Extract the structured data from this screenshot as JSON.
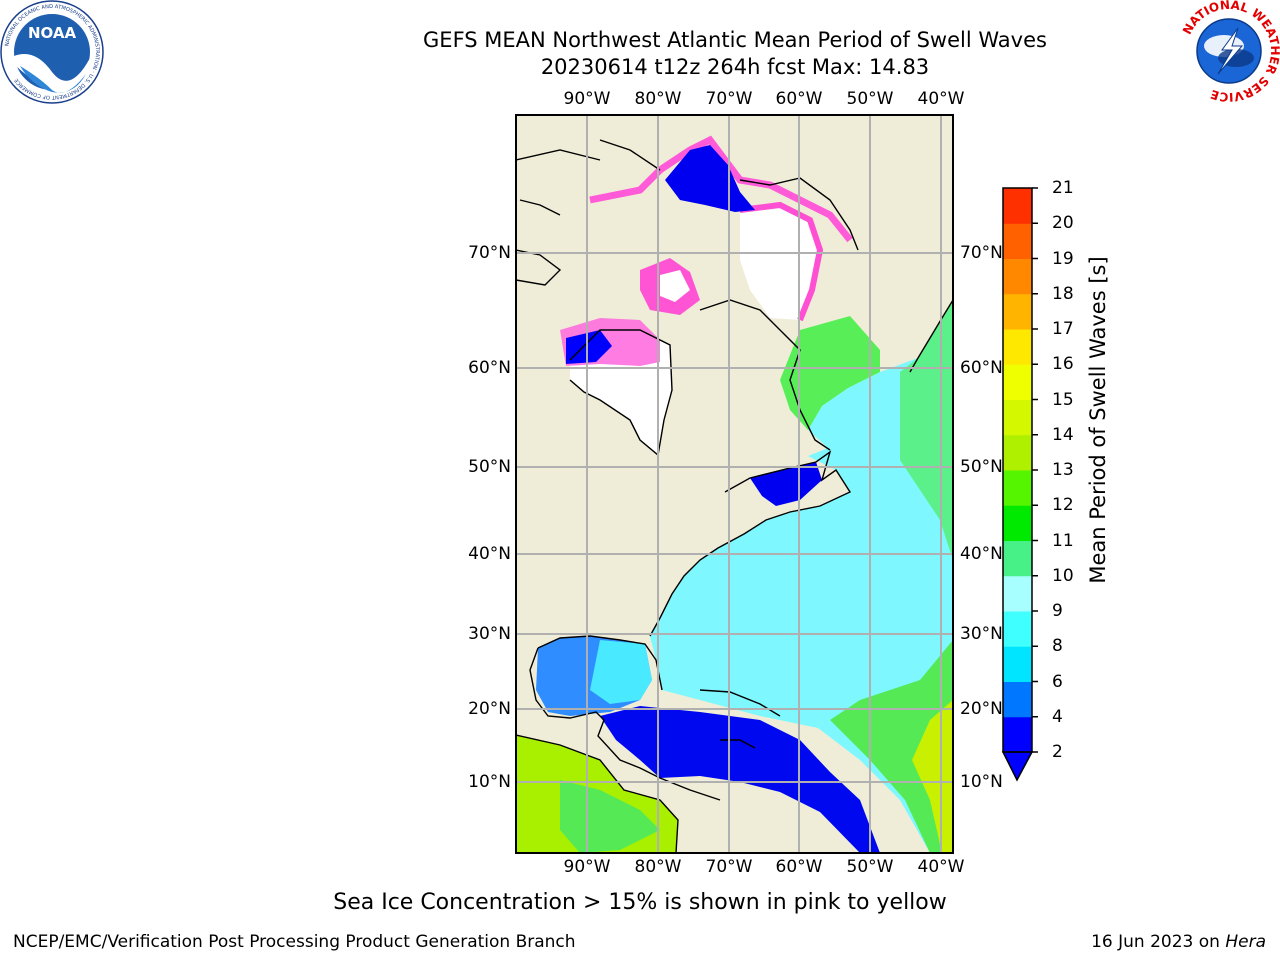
{
  "title": {
    "line1": "GEFS MEAN Northwest Atlantic Mean Period of Swell Waves",
    "line2": "20230614 t12z 264h fcst   Max: 14.83"
  },
  "map": {
    "lon_labels": [
      "90°W",
      "80°W",
      "70°W",
      "60°W",
      "50°W",
      "40°W"
    ],
    "lat_labels": [
      "10°N",
      "20°N",
      "30°N",
      "40°N",
      "50°N",
      "60°N",
      "70°N"
    ],
    "colors": {
      "land": "#efedd8",
      "ice": "#ff4fd2",
      "coast": "#000000",
      "grid": "#b0b0b0"
    }
  },
  "colorbar": {
    "label": "Mean Period of Swell Waves [s]",
    "ticks": [
      "2",
      "4",
      "6",
      "8",
      "9",
      "10",
      "11",
      "12",
      "13",
      "14",
      "15",
      "16",
      "17",
      "18",
      "19",
      "20",
      "21"
    ],
    "colors": [
      "#0000ff",
      "#0077ff",
      "#00e5ff",
      "#40ffff",
      "#a8ffff",
      "#48f088",
      "#00ea00",
      "#55f500",
      "#aef000",
      "#d4f800",
      "#f0ff00",
      "#ffe800",
      "#ffb400",
      "#ff8800",
      "#ff6000",
      "#ff3000",
      "#ff0000"
    ]
  },
  "footer": {
    "note": "Sea Ice Concentration > 15% is shown in pink to yellow",
    "credit": "NCEP/EMC/Verification Post Processing Product Generation Branch",
    "date": "16 Jun 2023 on",
    "machine": "Hera"
  },
  "logos": {
    "noaa": {
      "text": "NOAA",
      "ring": "NATIONAL OCEANIC AND ATMOSPHERIC ADMINISTRATION · U.S. DEPARTMENT OF COMMERCE"
    },
    "nws": {
      "ring": "NATIONAL WEATHER SERVICE"
    }
  }
}
